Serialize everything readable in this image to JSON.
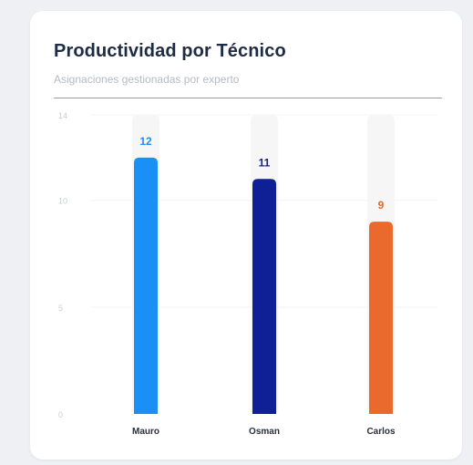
{
  "card": {
    "title": "Productividad por Técnico",
    "subtitle": "Asignaciones gestionadas por experto"
  },
  "chart_data": {
    "type": "bar",
    "categories": [
      "Mauro",
      "Osman",
      "Carlos"
    ],
    "values": [
      12,
      11,
      9
    ],
    "colors": [
      "#1a8ff5",
      "#0f2096",
      "#e96a2c"
    ],
    "ylim": [
      0,
      14
    ],
    "yticks": [
      0,
      5,
      10,
      14
    ],
    "grid": true,
    "legend": "none",
    "value_labels": true
  }
}
